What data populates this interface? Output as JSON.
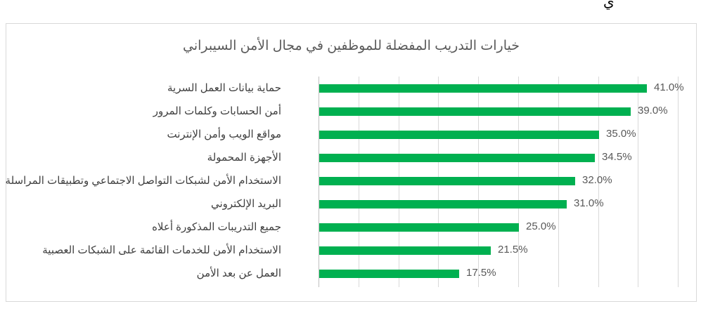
{
  "page": {
    "top_fragment": "ي"
  },
  "chart_data": {
    "type": "bar",
    "orientation": "horizontal",
    "title": "خيارات التدريب المفضلة للموظفين في مجال الأمن السيبراني",
    "xlabel": "",
    "ylabel": "",
    "xlim": [
      0,
      45
    ],
    "grid": true,
    "gridline_step": 5,
    "legend": null,
    "bar_color": "#00B050",
    "categories": [
      "حماية بيانات العمل السرية",
      "أمن الحسابات وكلمات المرور",
      "مواقع الويب وأمن الإنترنت",
      "الأجهزة المحمولة",
      "الاستخدام الأمن لشبكات التواصل الاجتماعي وتطبيقات المراسلة",
      "البريد الإلكتروني",
      "جميع التدريبات المذكورة أعلاه",
      "الاستخدام الأمن للخدمات القائمة على الشبكات العصبية",
      "العمل عن بعد الأمن"
    ],
    "values": [
      41.0,
      39.0,
      35.0,
      34.5,
      32.0,
      31.0,
      25.0,
      21.5,
      17.5
    ],
    "value_labels": [
      "41.0%",
      "39.0%",
      "35.0%",
      "34.5%",
      "32.0%",
      "31.0%",
      "25.0%",
      "21.5%",
      "17.5%"
    ]
  }
}
